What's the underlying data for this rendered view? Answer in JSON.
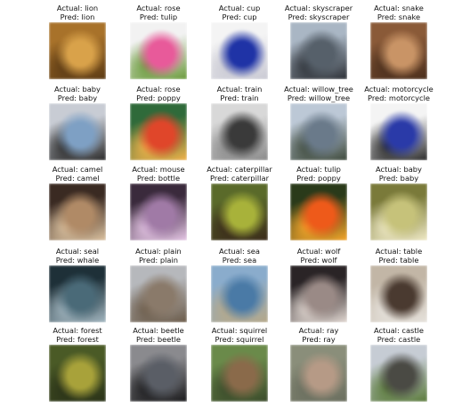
{
  "caption_prefix_actual": "Actual: ",
  "caption_prefix_pred": "Pred: ",
  "samples": [
    {
      "actual": "lion",
      "pred": "lion",
      "icon": "lion-photo",
      "colors": [
        "#a8722a",
        "#d9a24a",
        "#5b3a14"
      ]
    },
    {
      "actual": "rose",
      "pred": "tulip",
      "icon": "pink-flower-photo",
      "colors": [
        "#f2f2f2",
        "#e85a9a",
        "#6a9a3a"
      ]
    },
    {
      "actual": "cup",
      "pred": "cup",
      "icon": "blue-glass-cup-photo",
      "colors": [
        "#f4f4f4",
        "#1f33a6",
        "#c9c9d3"
      ]
    },
    {
      "actual": "skyscraper",
      "pred": "skyscraper",
      "icon": "skyscraper-photo",
      "colors": [
        "#a9b6c4",
        "#56606a",
        "#2c3036"
      ]
    },
    {
      "actual": "snake",
      "pred": "snake",
      "icon": "snake-photo",
      "colors": [
        "#8a5a38",
        "#c99466",
        "#4a2e1c"
      ]
    },
    {
      "actual": "baby",
      "pred": "baby",
      "icon": "baby-photo",
      "colors": [
        "#c8ccd4",
        "#7ea0c4",
        "#2a2a2a"
      ]
    },
    {
      "actual": "rose",
      "pred": "poppy",
      "icon": "red-flowers-photo",
      "colors": [
        "#2f6a3a",
        "#e0462a",
        "#f2b24a"
      ]
    },
    {
      "actual": "train",
      "pred": "train",
      "icon": "train-photo",
      "colors": [
        "#d8d8d8",
        "#3a3a3a",
        "#8a8a8a"
      ]
    },
    {
      "actual": "willow_tree",
      "pred": "willow_tree",
      "icon": "willow-tree-photo",
      "colors": [
        "#bcc8d6",
        "#6a7a8a",
        "#3e4a3c"
      ]
    },
    {
      "actual": "motorcycle",
      "pred": "motorcycle",
      "icon": "motorcycle-photo",
      "colors": [
        "#f4f4f4",
        "#2a3aa8",
        "#2a2a2a"
      ]
    },
    {
      "actual": "camel",
      "pred": "camel",
      "icon": "camel-photo",
      "colors": [
        "#3a2a22",
        "#b08a66",
        "#dcc2a0"
      ]
    },
    {
      "actual": "mouse",
      "pred": "bottle",
      "icon": "mouse-photo",
      "colors": [
        "#3a2a3c",
        "#a07aa6",
        "#e6c6e6"
      ]
    },
    {
      "actual": "caterpillar",
      "pred": "caterpillar",
      "icon": "caterpillar-photo",
      "colors": [
        "#5a6a2a",
        "#a8b23a",
        "#3a2a1a"
      ]
    },
    {
      "actual": "tulip",
      "pred": "poppy",
      "icon": "orange-tulip-photo",
      "colors": [
        "#2a3a1a",
        "#ee5a1a",
        "#f6a62a"
      ]
    },
    {
      "actual": "baby",
      "pred": "baby",
      "icon": "baby-photo-2",
      "colors": [
        "#7a7a3a",
        "#c6c27a",
        "#f0eac6"
      ]
    },
    {
      "actual": "seal",
      "pred": "whale",
      "icon": "seal-photo",
      "colors": [
        "#1e3038",
        "#4a6a78",
        "#a2b6c0"
      ]
    },
    {
      "actual": "plain",
      "pred": "plain",
      "icon": "plain-landscape-photo",
      "colors": [
        "#b6b8bc",
        "#8a7a6a",
        "#6a5a48"
      ]
    },
    {
      "actual": "sea",
      "pred": "sea",
      "icon": "sea-photo",
      "colors": [
        "#8aaccc",
        "#4a7aa6",
        "#b6a888"
      ]
    },
    {
      "actual": "wolf",
      "pred": "wolf",
      "icon": "wolf-photo",
      "colors": [
        "#2a2426",
        "#9a8a86",
        "#e2d8d2"
      ]
    },
    {
      "actual": "table",
      "pred": "table",
      "icon": "table-photo",
      "colors": [
        "#c2b6a6",
        "#4a3a30",
        "#e6e2dc"
      ]
    },
    {
      "actual": "forest",
      "pred": "forest",
      "icon": "forest-photo",
      "colors": [
        "#4a5a26",
        "#a8a23a",
        "#2a3218"
      ]
    },
    {
      "actual": "beetle",
      "pred": "beetle",
      "icon": "beetle-photo",
      "colors": [
        "#8a8a8e",
        "#5a5e66",
        "#1a1a1c"
      ]
    },
    {
      "actual": "squirrel",
      "pred": "squirrel",
      "icon": "squirrel-photo",
      "colors": [
        "#6a8a4a",
        "#8a6a4a",
        "#3a4a2a"
      ]
    },
    {
      "actual": "ray",
      "pred": "ray",
      "icon": "ray-photo",
      "colors": [
        "#8a8e7a",
        "#b69a86",
        "#6a6e5e"
      ]
    },
    {
      "actual": "castle",
      "pred": "castle",
      "icon": "castle-photo",
      "colors": [
        "#c6ccd4",
        "#4a4a44",
        "#5a7a3a"
      ]
    }
  ]
}
